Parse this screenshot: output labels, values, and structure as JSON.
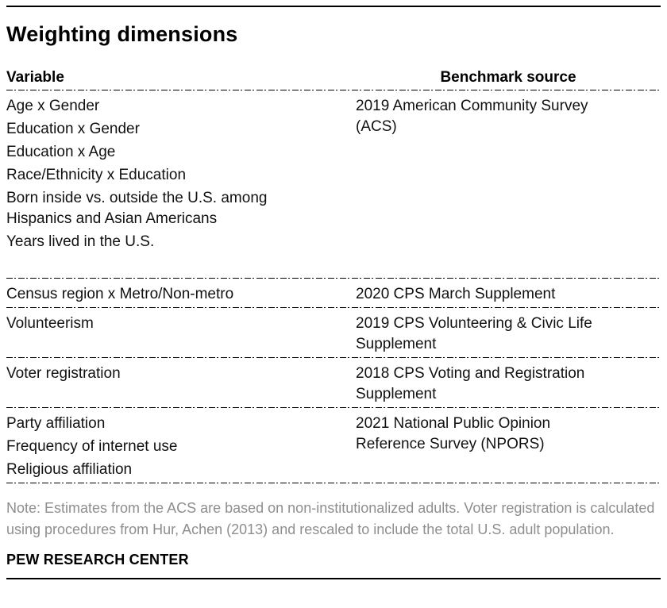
{
  "title": "Weighting dimensions",
  "table": {
    "headers": {
      "variable": "Variable",
      "benchmark": "Benchmark source"
    },
    "rows": [
      {
        "variables": [
          [
            "Age x Gender"
          ],
          [
            "Education x Gender"
          ],
          [
            "Education x Age"
          ],
          [
            "Race/Ethnicity x Education"
          ],
          [
            "Born inside vs. outside the U.S. among",
            "Hispanics and Asian Americans"
          ],
          [
            "Years lived in the U.S."
          ]
        ],
        "benchmark": [
          "2019 American Community Survey",
          "(ACS)"
        ]
      },
      {
        "variables": [
          [
            "Census region x Metro/Non-metro"
          ]
        ],
        "benchmark": [
          "2020 CPS March Supplement"
        ]
      },
      {
        "variables": [
          [
            "Volunteerism"
          ]
        ],
        "benchmark": [
          "2019 CPS Volunteering & Civic Life",
          "Supplement"
        ]
      },
      {
        "variables": [
          [
            "Voter registration"
          ]
        ],
        "benchmark": [
          "2018 CPS Voting and Registration",
          "Supplement"
        ]
      },
      {
        "variables": [
          [
            "Party affiliation"
          ],
          [
            "Frequency of internet use"
          ],
          [
            "Religious affiliation"
          ]
        ],
        "benchmark": [
          "2021 National Public Opinion",
          "Reference Survey (NPORS)"
        ]
      }
    ]
  },
  "note": "Note: Estimates from the ACS are based on non-institutionalized adults. Voter registration is calculated using procedures from Hur, Achen (2013) and rescaled to include the total U.S. adult population.",
  "footer": "PEW RESEARCH CENTER",
  "colors": {
    "text": "#000000",
    "body_text": "#111111",
    "note_text": "#8e8e8e",
    "rule": "#000000"
  },
  "chart_data": {
    "type": "table",
    "title": "Weighting dimensions",
    "columns": [
      "Variable",
      "Benchmark source"
    ],
    "rows": [
      {
        "variables": [
          "Age x Gender",
          "Education x Gender",
          "Education x Age",
          "Race/Ethnicity x Education",
          "Born inside vs. outside the U.S. among Hispanics and Asian Americans",
          "Years lived in the U.S."
        ],
        "benchmark_source": "2019 American Community Survey (ACS)"
      },
      {
        "variables": [
          "Census region x Metro/Non-metro"
        ],
        "benchmark_source": "2020 CPS March Supplement"
      },
      {
        "variables": [
          "Volunteerism"
        ],
        "benchmark_source": "2019 CPS Volunteering & Civic Life Supplement"
      },
      {
        "variables": [
          "Voter registration"
        ],
        "benchmark_source": "2018 CPS Voting and Registration Supplement"
      },
      {
        "variables": [
          "Party affiliation",
          "Frequency of internet use",
          "Religious affiliation"
        ],
        "benchmark_source": "2021 National Public Opinion Reference Survey (NPORS)"
      }
    ],
    "note": "Note: Estimates from the ACS are based on non-institutionalized adults. Voter registration is calculated using procedures from Hur, Achen (2013) and rescaled to include the total U.S. adult population.",
    "source": "PEW RESEARCH CENTER"
  }
}
